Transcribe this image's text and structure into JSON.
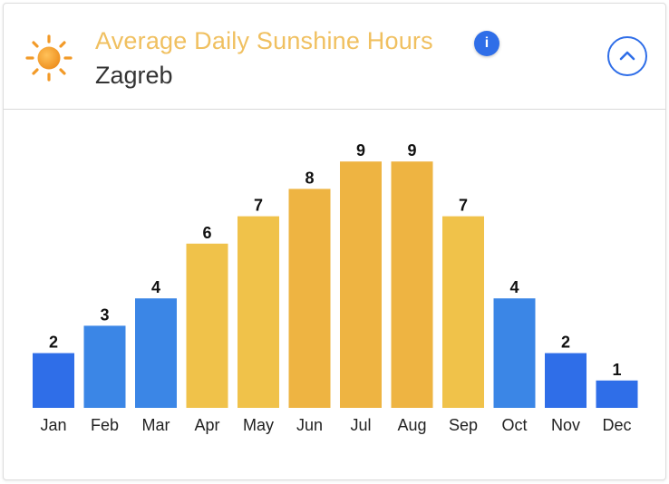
{
  "header": {
    "title": "Average Daily Sunshine Hours",
    "subtitle": "Zagreb",
    "info_glyph": "i",
    "icons": {
      "weather": "sun-icon",
      "info": "info-icon",
      "collapse": "chevron-up-icon"
    }
  },
  "colors": {
    "title": "#f0c060",
    "accent": "#2f6ee8",
    "bar_low": "#2f6ee8",
    "bar_mid_blue": "#3b86e6",
    "bar_mid_yellow": "#f0c24a",
    "bar_high": "#eeb442"
  },
  "chart_data": {
    "type": "bar",
    "categories": [
      "Jan",
      "Feb",
      "Mar",
      "Apr",
      "May",
      "Jun",
      "Jul",
      "Aug",
      "Sep",
      "Oct",
      "Nov",
      "Dec"
    ],
    "values": [
      2,
      3,
      4,
      6,
      7,
      8,
      9,
      9,
      7,
      4,
      2,
      1
    ],
    "title": "Average Daily Sunshine Hours",
    "subtitle": "Zagreb",
    "xlabel": "",
    "ylabel": "",
    "ylim": [
      0,
      9
    ],
    "grid": false,
    "legend": "none",
    "data_labels": true
  }
}
